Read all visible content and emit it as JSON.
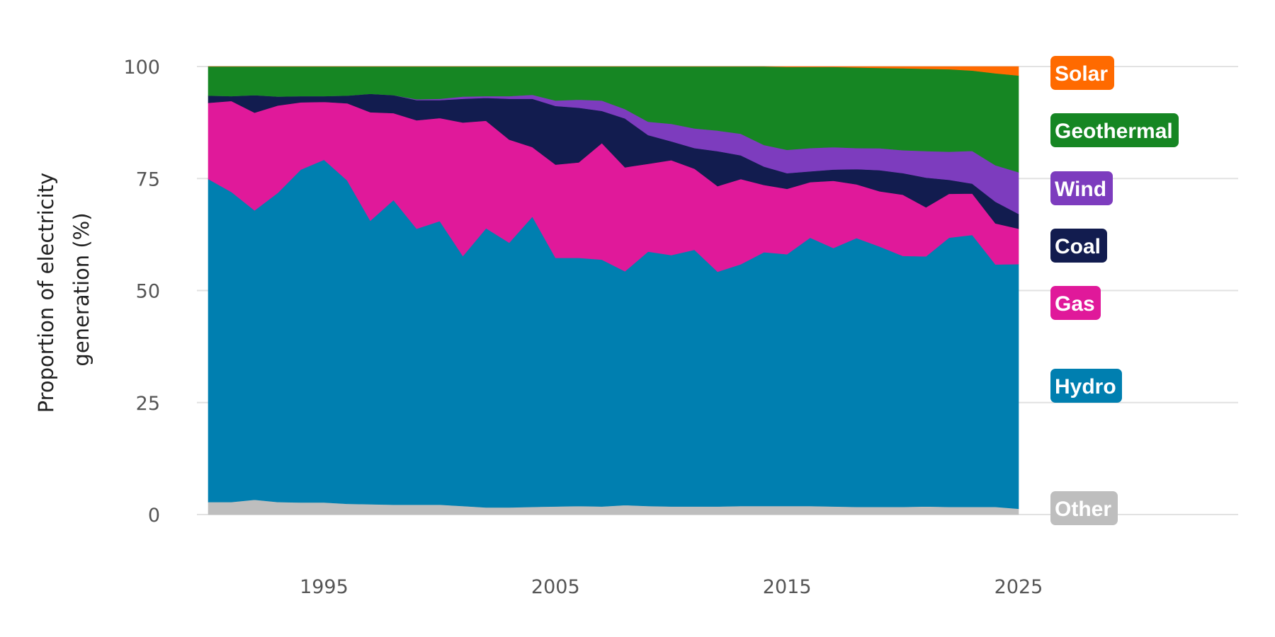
{
  "chart_data": {
    "type": "area",
    "stacked": true,
    "title": "",
    "xlabel": "",
    "ylabel": "Proportion of electricity generation (%)",
    "ylabel_lines": [
      "Proportion of electricity",
      "generation (%)"
    ],
    "xlim": [
      1990,
      2025
    ],
    "ylim": [
      0,
      100
    ],
    "xticks": [
      "1995",
      "2005",
      "2015",
      "2025"
    ],
    "yticks": [
      "0",
      "25",
      "50",
      "75",
      "100"
    ],
    "grid": true,
    "legend_placement": "right",
    "x": [
      1990,
      1991,
      1992,
      1993,
      1994,
      1995,
      1996,
      1997,
      1998,
      1999,
      2000,
      2001,
      2002,
      2003,
      2004,
      2005,
      2006,
      2007,
      2008,
      2009,
      2010,
      2011,
      2012,
      2013,
      2014,
      2015,
      2016,
      2017,
      2018,
      2019,
      2020,
      2021,
      2022,
      2023,
      2024,
      2025
    ],
    "series": [
      {
        "name": "Other",
        "color": "#bebebe",
        "values": [
          2.8,
          2.8,
          3.3,
          2.8,
          2.7,
          2.7,
          2.4,
          2.3,
          2.2,
          2.2,
          2.2,
          1.9,
          1.6,
          1.6,
          1.7,
          1.8,
          1.9,
          1.8,
          2.1,
          1.9,
          1.8,
          1.8,
          1.8,
          1.9,
          1.9,
          1.9,
          1.9,
          1.8,
          1.7,
          1.7,
          1.7,
          1.8,
          1.7,
          1.7,
          1.7,
          1.3
        ]
      },
      {
        "name": "Hydro",
        "color": "#007fb0",
        "values": [
          72.1,
          69.2,
          64.6,
          69.0,
          74.3,
          76.5,
          72.2,
          63.3,
          68.0,
          61.6,
          63.3,
          55.8,
          62.3,
          59.1,
          64.8,
          55.5,
          55.4,
          55.1,
          52.2,
          56.8,
          56.1,
          57.3,
          52.4,
          53.9,
          56.6,
          56.2,
          59.9,
          57.7,
          60.0,
          58.0,
          55.8,
          55.6,
          60.1,
          60.6,
          53.8,
          54.6
        ]
      },
      {
        "name": "Gas",
        "color": "#e0199a",
        "values": [
          17.0,
          20.3,
          21.8,
          19.5,
          15.0,
          12.9,
          17.2,
          24.2,
          19.4,
          24.2,
          23.0,
          29.8,
          24.0,
          23.0,
          15.5,
          20.8,
          21.3,
          26.0,
          23.2,
          19.6,
          21.2,
          18.1,
          19.1,
          19.0,
          15.0,
          14.6,
          12.4,
          15.0,
          12.0,
          12.3,
          13.6,
          10.9,
          9.8,
          9.2,
          9.1,
          7.9
        ]
      },
      {
        "name": "Coal",
        "color": "#121c4f",
        "values": [
          1.6,
          1.1,
          3.9,
          2.0,
          1.4,
          1.3,
          1.7,
          4.1,
          4.0,
          4.5,
          4.0,
          5.3,
          5.1,
          9.1,
          10.8,
          13.1,
          12.2,
          7.2,
          10.9,
          6.4,
          4.2,
          4.6,
          7.8,
          5.3,
          4.1,
          3.5,
          2.4,
          2.5,
          3.4,
          4.7,
          4.8,
          6.6,
          3.1,
          2.2,
          4.8,
          3.3
        ]
      },
      {
        "name": "Wind",
        "color": "#7d3cbe",
        "values": [
          0.0,
          0.0,
          0.0,
          0.0,
          0.0,
          0.0,
          0.0,
          0.0,
          0.0,
          0.2,
          0.3,
          0.5,
          0.4,
          0.6,
          0.9,
          1.2,
          1.8,
          2.3,
          2.1,
          3.0,
          3.9,
          4.4,
          4.6,
          4.8,
          4.8,
          5.2,
          5.2,
          5.0,
          4.7,
          4.9,
          5.1,
          5.9,
          6.3,
          7.3,
          8.1,
          9.3
        ]
      },
      {
        "name": "Geothermal",
        "color": "#168623",
        "values": [
          6.5,
          6.6,
          6.4,
          6.7,
          6.6,
          6.6,
          6.5,
          6.1,
          6.4,
          7.3,
          7.2,
          6.7,
          6.6,
          6.6,
          6.3,
          7.6,
          7.4,
          7.6,
          9.5,
          12.3,
          12.8,
          13.8,
          14.3,
          15.0,
          17.5,
          18.5,
          18.1,
          17.9,
          18.0,
          17.9,
          18.2,
          18.3,
          18.4,
          17.9,
          20.4,
          21.6
        ]
      },
      {
        "name": "Solar",
        "color": "#ff6a00",
        "values": [
          0,
          0,
          0,
          0,
          0,
          0,
          0,
          0,
          0,
          0,
          0,
          0,
          0,
          0,
          0,
          0,
          0,
          0,
          0,
          0,
          0,
          0,
          0,
          0,
          0,
          0.1,
          0.1,
          0.1,
          0.2,
          0.3,
          0.4,
          0.5,
          0.6,
          0.9,
          1.5,
          2.0
        ]
      }
    ]
  },
  "legend": {
    "items": [
      {
        "label": "Solar",
        "color": "#ff6a00"
      },
      {
        "label": "Geothermal",
        "color": "#168623"
      },
      {
        "label": "Wind",
        "color": "#7d3cbe"
      },
      {
        "label": "Coal",
        "color": "#121c4f"
      },
      {
        "label": "Gas",
        "color": "#e0199a"
      },
      {
        "label": "Hydro",
        "color": "#007fb0"
      },
      {
        "label": "Other",
        "color": "#bebebe"
      }
    ]
  }
}
